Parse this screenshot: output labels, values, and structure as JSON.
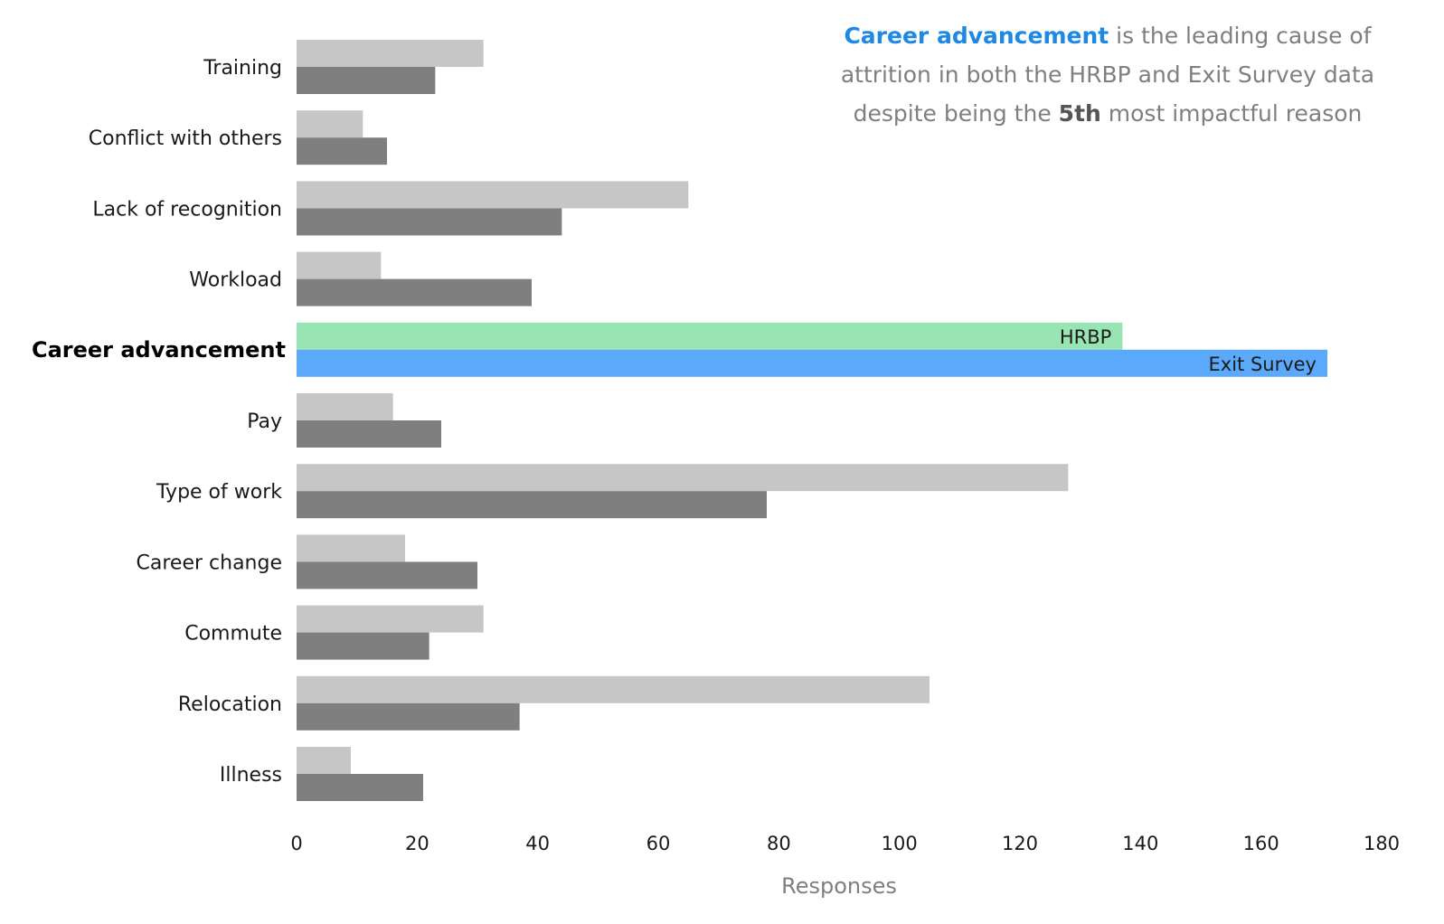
{
  "annotation": {
    "highlight": "Career advancement",
    "line1_rest": " is the leading cause of",
    "line2": "attrition in both the HRBP and Exit Survey data",
    "line3_pre": "despite being the ",
    "line3_bold": "5th",
    "line3_post": " most impactful reason"
  },
  "colors": {
    "hrbp_default": "#c6c6c6",
    "exit_default": "#7f7f7f",
    "hrbp_highlight": "#98e4b2",
    "exit_highlight": "#5aa9fa"
  },
  "chart_data": {
    "type": "bar",
    "orientation": "horizontal",
    "categories": [
      "Training",
      "Conflict with others",
      "Lack of recognition",
      "Workload",
      "Career advancement",
      "Pay",
      "Type of work",
      "Career change",
      "Commute",
      "Relocation",
      "Illness"
    ],
    "highlight_category": "Career advancement",
    "series": [
      {
        "name": "HRBP",
        "values": [
          31,
          11,
          65,
          14,
          137,
          16,
          128,
          18,
          31,
          105,
          9
        ]
      },
      {
        "name": "Exit Survey",
        "values": [
          23,
          15,
          44,
          39,
          171,
          24,
          78,
          30,
          22,
          37,
          21
        ]
      }
    ],
    "xlabel": "Responses",
    "xlim": [
      0,
      180
    ],
    "xticks": [
      "0",
      "20",
      "40",
      "60",
      "80",
      "100",
      "120",
      "140",
      "160",
      "180"
    ],
    "grid": false,
    "legend": "inline labels on highlighted bars"
  }
}
